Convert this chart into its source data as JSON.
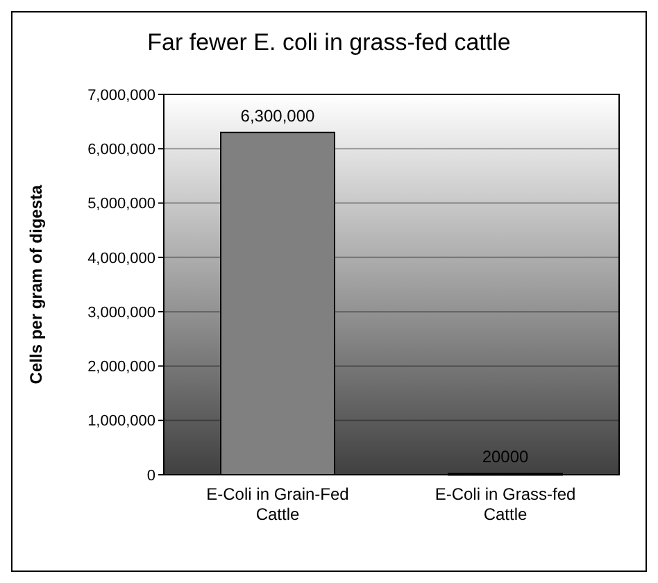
{
  "chart_data": {
    "type": "bar",
    "title": "Far fewer E. coli in grass-fed cattle",
    "ylabel": "Cells per gram of digesta",
    "categories": [
      "E-Coli in Grain-Fed Cattle",
      "E-Coli in Grass-fed Cattle"
    ],
    "values": [
      6300000,
      20000
    ],
    "value_labels": [
      "6,300,000",
      "20000"
    ],
    "color": "#808080",
    "ylim": [
      0,
      7000000
    ],
    "yticks": [
      0,
      {
        "value": 1000000,
        "label": "1,000,000"
      },
      {
        "value": 2000000,
        "label": "2,000,000"
      },
      {
        "value": 3000000,
        "label": "3,000,000"
      },
      {
        "value": 4000000,
        "label": "4,000,000"
      },
      {
        "value": 5000000,
        "label": "5,000,000"
      },
      {
        "value": 6000000,
        "label": "6,000,000"
      },
      {
        "value": 7000000,
        "label": "7,000,000"
      }
    ],
    "grid": "y"
  }
}
